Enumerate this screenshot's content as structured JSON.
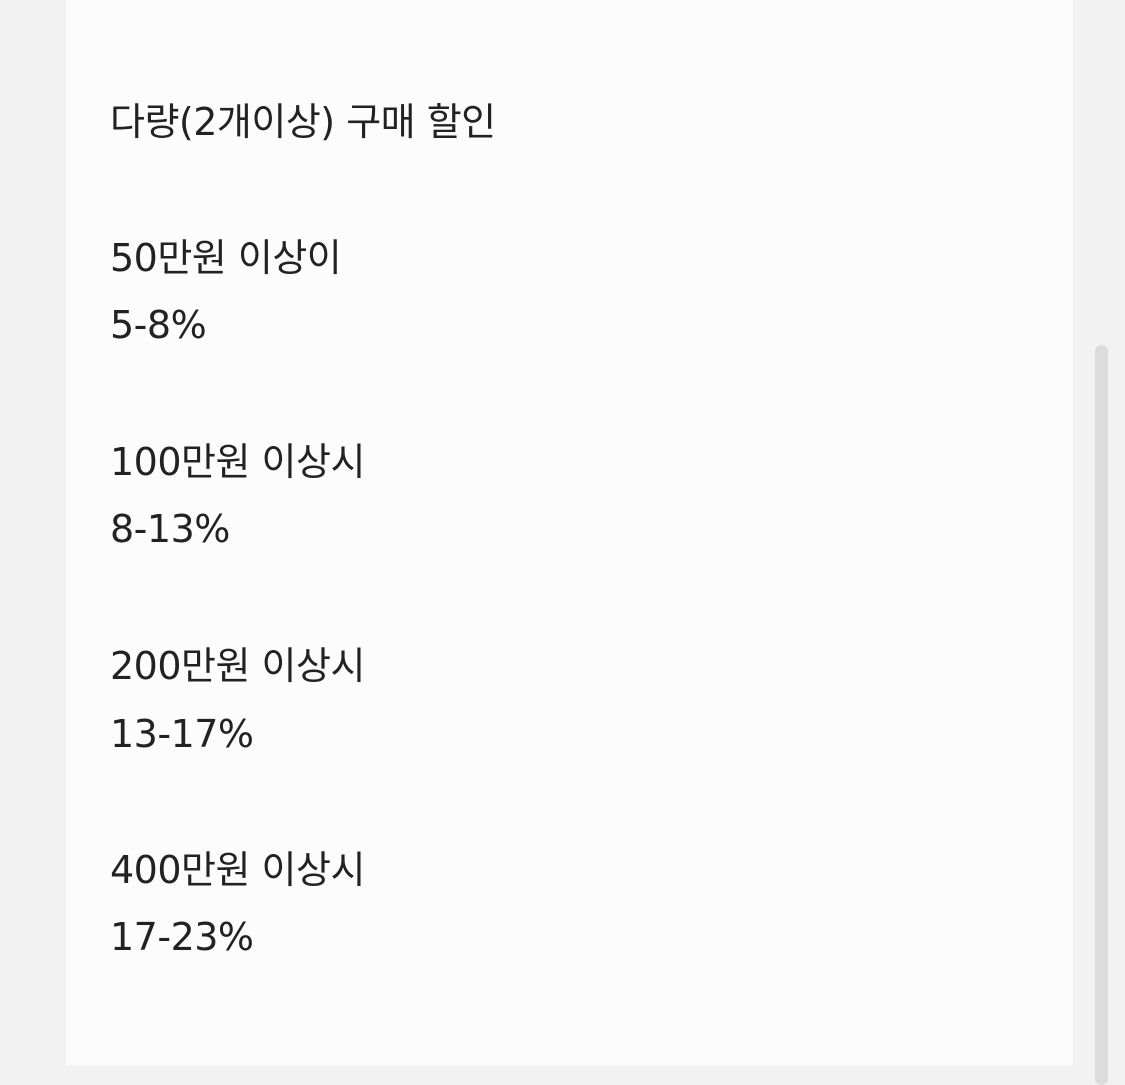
{
  "title": "다량(2개이상) 구매 할인",
  "tiers": [
    {
      "threshold": "50만원 이상이",
      "discount": "5-8%"
    },
    {
      "threshold": "100만원 이상시",
      "discount": "8-13%"
    },
    {
      "threshold": "200만원 이상시",
      "discount": "13-17%"
    },
    {
      "threshold": "400만원 이상시",
      "discount": "17-23%"
    }
  ],
  "colors": {
    "background": "#f2f2f2",
    "panel": "#fcfcfc",
    "text": "#222222",
    "scrollbar": "#dcdcdc"
  }
}
